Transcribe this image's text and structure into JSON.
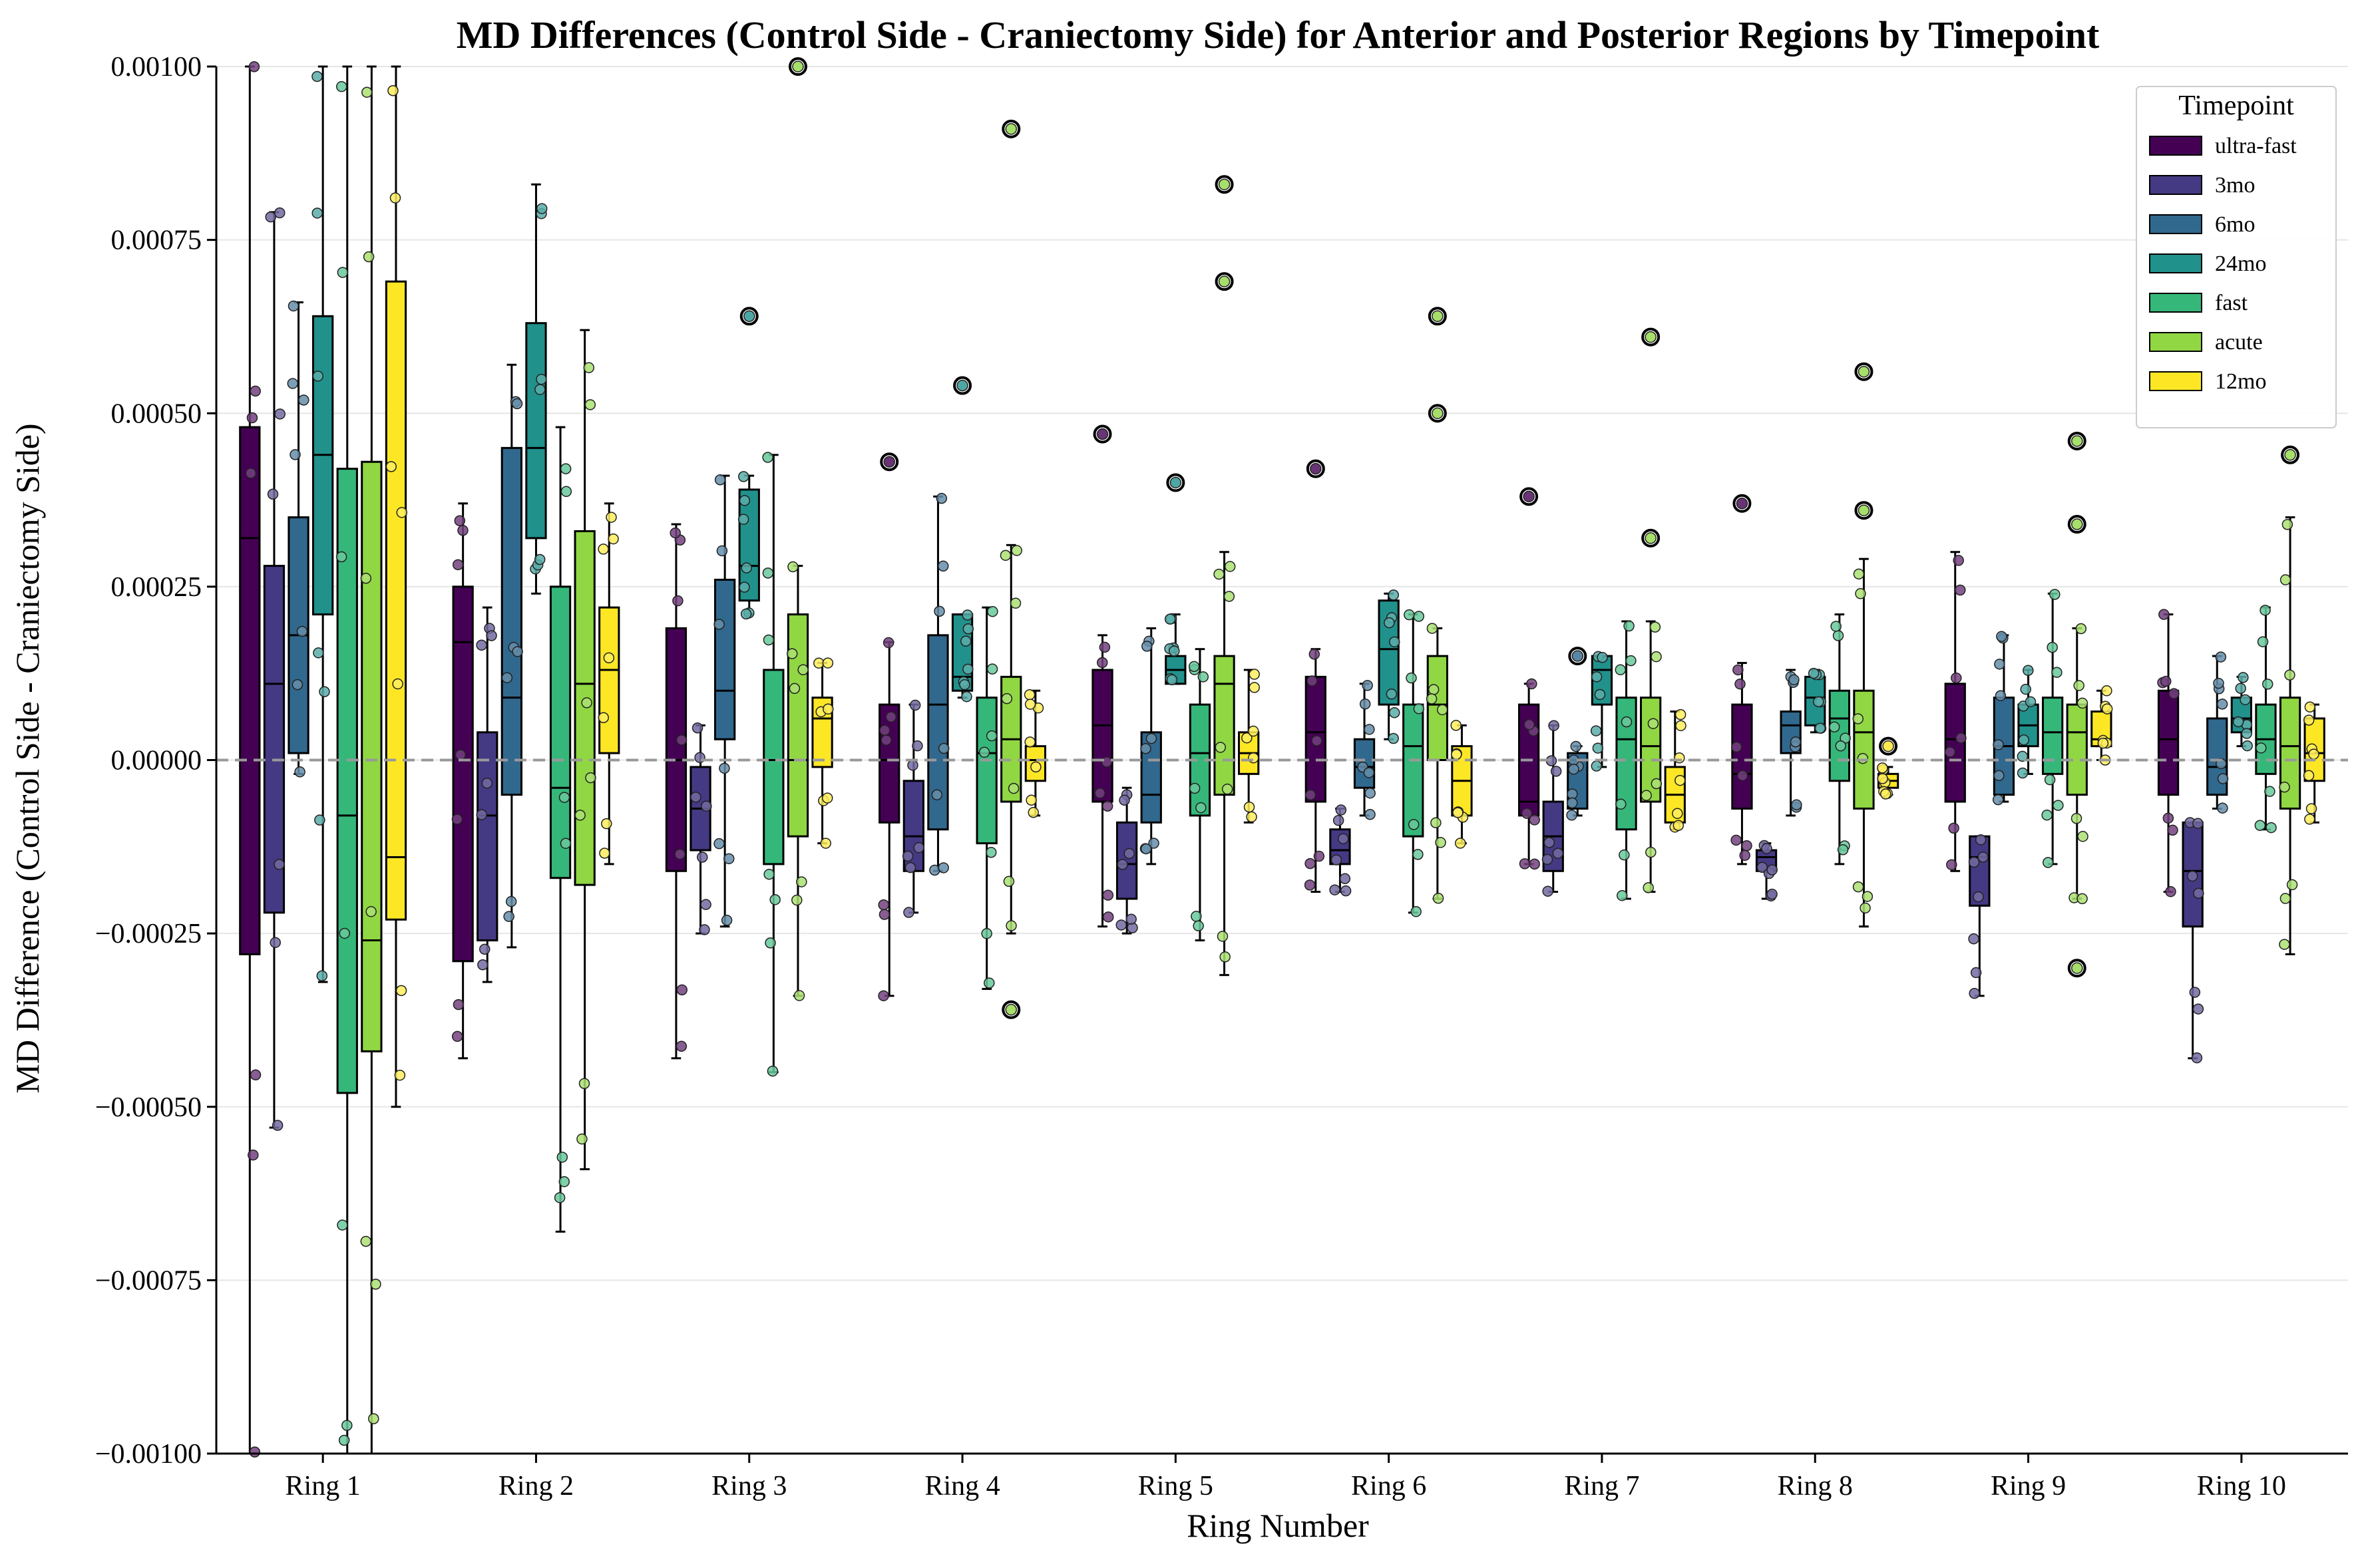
{
  "chart_data": {
    "type": "box",
    "title": "MD Differences (Control Side - Craniectomy Side) for Anterior and Posterior Regions by Timepoint",
    "xlabel": "Ring Number",
    "ylabel": "MD Difference (Control Side - Craniectomy Side)",
    "ylim": [
      -0.001,
      0.001
    ],
    "yticks": [
      -0.001,
      -0.00075,
      -0.0005,
      -0.00025,
      0.0,
      0.00025,
      0.0005,
      0.00075,
      0.001
    ],
    "ytick_labels": [
      "−0.00100",
      "−0.00075",
      "−0.00050",
      "−0.00025",
      "0.00000",
      "0.00025",
      "0.00050",
      "0.00075",
      "0.00100"
    ],
    "categories": [
      "Ring 1",
      "Ring 2",
      "Ring 3",
      "Ring 4",
      "Ring 5",
      "Ring 6",
      "Ring 7",
      "Ring 8",
      "Ring 9",
      "Ring 10"
    ],
    "reference_line": 0.0,
    "grid": "horizontal",
    "legend": {
      "title": "Timepoint",
      "position": "top-right"
    },
    "series": [
      {
        "name": "ultra-fast",
        "color": "#440154",
        "boxes": [
          {
            "q1": -0.00028,
            "median": 0.00032,
            "q3": 0.00048,
            "whislo": -0.001,
            "whishi": 0.001,
            "fliers": []
          },
          {
            "q1": -0.00029,
            "median": 0.00017,
            "q3": 0.00025,
            "whislo": -0.00043,
            "whishi": 0.00037,
            "fliers": []
          },
          {
            "q1": -0.00016,
            "median": 0.0,
            "q3": 0.00019,
            "whislo": -0.00043,
            "whishi": 0.00034,
            "fliers": []
          },
          {
            "q1": -9e-05,
            "median": 0.0,
            "q3": 8e-05,
            "whislo": -0.00034,
            "whishi": 0.00017,
            "fliers": [
              0.00043
            ]
          },
          {
            "q1": -6e-05,
            "median": 5e-05,
            "q3": 0.00013,
            "whislo": -0.00024,
            "whishi": 0.00018,
            "fliers": [
              0.00047
            ]
          },
          {
            "q1": -6e-05,
            "median": 4e-05,
            "q3": 0.00012,
            "whislo": -0.00019,
            "whishi": 0.00016,
            "fliers": [
              0.00042
            ]
          },
          {
            "q1": -8e-05,
            "median": -6e-05,
            "q3": 8e-05,
            "whislo": -0.00015,
            "whishi": 0.00011,
            "fliers": [
              0.00038
            ]
          },
          {
            "q1": -7e-05,
            "median": -2e-05,
            "q3": 8e-05,
            "whislo": -0.00015,
            "whishi": 0.00014,
            "fliers": [
              0.00037
            ]
          },
          {
            "q1": -6e-05,
            "median": 3e-05,
            "q3": 0.00011,
            "whislo": -0.00016,
            "whishi": 0.0003,
            "fliers": []
          },
          {
            "q1": -5e-05,
            "median": 3e-05,
            "q3": 0.0001,
            "whislo": -0.00019,
            "whishi": 0.00021,
            "fliers": []
          }
        ]
      },
      {
        "name": "3mo",
        "color": "#443983",
        "boxes": [
          {
            "q1": -0.00022,
            "median": 0.00011,
            "q3": 0.00028,
            "whislo": -0.00053,
            "whishi": 0.00079,
            "fliers": []
          },
          {
            "q1": -0.00026,
            "median": -8e-05,
            "q3": 4e-05,
            "whislo": -0.00032,
            "whishi": 0.00022,
            "fliers": []
          },
          {
            "q1": -0.00013,
            "median": -7e-05,
            "q3": -1e-05,
            "whislo": -0.00025,
            "whishi": 5e-05,
            "fliers": []
          },
          {
            "q1": -0.00016,
            "median": -0.00011,
            "q3": -3e-05,
            "whislo": -0.00022,
            "whishi": 8e-05,
            "fliers": []
          },
          {
            "q1": -0.0002,
            "median": -0.00015,
            "q3": -9e-05,
            "whislo": -0.00025,
            "whishi": -4e-05,
            "fliers": []
          },
          {
            "q1": -0.00015,
            "median": -0.00013,
            "q3": -0.0001,
            "whislo": -0.00019,
            "whishi": -7e-05,
            "fliers": []
          },
          {
            "q1": -0.00016,
            "median": -0.00011,
            "q3": -6e-05,
            "whislo": -0.00019,
            "whishi": 5e-05,
            "fliers": []
          },
          {
            "q1": -0.00016,
            "median": -0.00014,
            "q3": -0.00013,
            "whislo": -0.0002,
            "whishi": -0.00012,
            "fliers": []
          },
          {
            "q1": -0.00021,
            "median": -0.00014,
            "q3": -0.00011,
            "whislo": -0.00034,
            "whishi": -0.00011,
            "fliers": []
          },
          {
            "q1": -0.00024,
            "median": -0.00016,
            "q3": -9e-05,
            "whislo": -0.00043,
            "whishi": -9e-05,
            "fliers": []
          }
        ]
      },
      {
        "name": "6mo",
        "color": "#31688e",
        "boxes": [
          {
            "q1": 1e-05,
            "median": 0.00018,
            "q3": 0.00035,
            "whislo": -2e-05,
            "whishi": 0.00066,
            "fliers": []
          },
          {
            "q1": -5e-05,
            "median": 9e-05,
            "q3": 0.00045,
            "whislo": -0.00027,
            "whishi": 0.00057,
            "fliers": []
          },
          {
            "q1": 3e-05,
            "median": 0.0001,
            "q3": 0.00026,
            "whislo": -0.00024,
            "whishi": 0.00041,
            "fliers": []
          },
          {
            "q1": -0.0001,
            "median": 8e-05,
            "q3": 0.00018,
            "whislo": -0.00016,
            "whishi": 0.00038,
            "fliers": []
          },
          {
            "q1": -9e-05,
            "median": -5e-05,
            "q3": 4e-05,
            "whislo": -0.00015,
            "whishi": 0.00019,
            "fliers": []
          },
          {
            "q1": -4e-05,
            "median": -1e-05,
            "q3": 3e-05,
            "whislo": -8e-05,
            "whishi": 0.00011,
            "fliers": []
          },
          {
            "q1": -7e-05,
            "median": 0.0,
            "q3": 1e-05,
            "whislo": -8e-05,
            "whishi": 2e-05,
            "fliers": [
              0.00015
            ]
          },
          {
            "q1": 1e-05,
            "median": 5e-05,
            "q3": 7e-05,
            "whislo": -8e-05,
            "whishi": 0.00013,
            "fliers": []
          },
          {
            "q1": -5e-05,
            "median": 2e-05,
            "q3": 9e-05,
            "whislo": -6e-05,
            "whishi": 0.00018,
            "fliers": []
          },
          {
            "q1": -5e-05,
            "median": -1e-05,
            "q3": 6e-05,
            "whislo": -7e-05,
            "whishi": 0.00015,
            "fliers": []
          }
        ]
      },
      {
        "name": "24mo",
        "color": "#21918c",
        "boxes": [
          {
            "q1": 0.00021,
            "median": 0.00044,
            "q3": 0.00064,
            "whislo": -0.00032,
            "whishi": 0.001,
            "fliers": []
          },
          {
            "q1": 0.00032,
            "median": 0.00045,
            "q3": 0.00063,
            "whislo": 0.00024,
            "whishi": 0.00083,
            "fliers": []
          },
          {
            "q1": 0.00023,
            "median": 0.00028,
            "q3": 0.00039,
            "whislo": 0.00021,
            "whishi": 0.00041,
            "fliers": [
              0.00064
            ]
          },
          {
            "q1": 0.0001,
            "median": 0.00012,
            "q3": 0.00021,
            "whislo": 9e-05,
            "whishi": 0.00021,
            "fliers": [
              0.00054
            ]
          },
          {
            "q1": 0.00011,
            "median": 0.00013,
            "q3": 0.00015,
            "whislo": 0.00011,
            "whishi": 0.00021,
            "fliers": [
              0.0004
            ]
          },
          {
            "q1": 8e-05,
            "median": 0.00016,
            "q3": 0.00023,
            "whislo": 3e-05,
            "whishi": 0.00024,
            "fliers": []
          },
          {
            "q1": 8e-05,
            "median": 0.00013,
            "q3": 0.00015,
            "whislo": -1e-05,
            "whishi": 0.00015,
            "fliers": []
          },
          {
            "q1": 5e-05,
            "median": 9e-05,
            "q3": 0.00012,
            "whislo": 4e-05,
            "whishi": 0.00013,
            "fliers": []
          },
          {
            "q1": 2e-05,
            "median": 5e-05,
            "q3": 8e-05,
            "whislo": -2e-05,
            "whishi": 0.00013,
            "fliers": []
          },
          {
            "q1": 4e-05,
            "median": 6e-05,
            "q3": 9e-05,
            "whislo": 2e-05,
            "whishi": 0.00012,
            "fliers": []
          }
        ]
      },
      {
        "name": "fast",
        "color": "#35b779",
        "boxes": [
          {
            "q1": -0.00048,
            "median": -8e-05,
            "q3": 0.00042,
            "whislo": -0.001,
            "whishi": 0.001,
            "fliers": []
          },
          {
            "q1": -0.00017,
            "median": -4e-05,
            "q3": 0.00025,
            "whislo": -0.00068,
            "whishi": 0.00048,
            "fliers": []
          },
          {
            "q1": -0.00015,
            "median": 0.0,
            "q3": 0.00013,
            "whislo": -0.00045,
            "whishi": 0.00044,
            "fliers": []
          },
          {
            "q1": -0.00012,
            "median": 1e-05,
            "q3": 9e-05,
            "whislo": -0.00033,
            "whishi": 0.00022,
            "fliers": []
          },
          {
            "q1": -8e-05,
            "median": 1e-05,
            "q3": 8e-05,
            "whislo": -0.00026,
            "whishi": 0.00016,
            "fliers": []
          },
          {
            "q1": -0.00011,
            "median": 2e-05,
            "q3": 8e-05,
            "whislo": -0.00022,
            "whishi": 0.00021,
            "fliers": []
          },
          {
            "q1": -0.0001,
            "median": 3e-05,
            "q3": 9e-05,
            "whislo": -0.0002,
            "whishi": 0.0002,
            "fliers": []
          },
          {
            "q1": -3e-05,
            "median": 6e-05,
            "q3": 0.0001,
            "whislo": -0.00015,
            "whishi": 0.00021,
            "fliers": []
          },
          {
            "q1": -2e-05,
            "median": 4e-05,
            "q3": 9e-05,
            "whislo": -0.00015,
            "whishi": 0.00024,
            "fliers": []
          },
          {
            "q1": -2e-05,
            "median": 3e-05,
            "q3": 8e-05,
            "whislo": -0.0001,
            "whishi": 0.00022,
            "fliers": []
          }
        ]
      },
      {
        "name": "acute",
        "color": "#90d743",
        "boxes": [
          {
            "q1": -0.00042,
            "median": -0.00026,
            "q3": 0.00043,
            "whislo": -0.001,
            "whishi": 0.001,
            "fliers": []
          },
          {
            "q1": -0.00018,
            "median": 0.00011,
            "q3": 0.00033,
            "whislo": -0.00059,
            "whishi": 0.00062,
            "fliers": []
          },
          {
            "q1": -0.00011,
            "median": 0.0,
            "q3": 0.00021,
            "whislo": -0.00034,
            "whishi": 0.00028,
            "fliers": [
              0.001
            ]
          },
          {
            "q1": -6e-05,
            "median": 3e-05,
            "q3": 0.00012,
            "whislo": -0.00025,
            "whishi": 0.00031,
            "fliers": [
              0.00091,
              -0.00036
            ]
          },
          {
            "q1": -5e-05,
            "median": 0.00011,
            "q3": 0.00015,
            "whislo": -0.00031,
            "whishi": 0.0003,
            "fliers": [
              0.00083,
              0.00069
            ]
          },
          {
            "q1": 0.0,
            "median": 8e-05,
            "q3": 0.00015,
            "whislo": -0.0002,
            "whishi": 0.00019,
            "fliers": [
              0.00064,
              0.0005
            ]
          },
          {
            "q1": -6e-05,
            "median": 2e-05,
            "q3": 9e-05,
            "whislo": -0.00019,
            "whishi": 0.0002,
            "fliers": [
              0.00061,
              0.00032
            ]
          },
          {
            "q1": -7e-05,
            "median": 4e-05,
            "q3": 0.0001,
            "whislo": -0.00024,
            "whishi": 0.00029,
            "fliers": [
              0.00056,
              0.00036
            ]
          },
          {
            "q1": -5e-05,
            "median": 4e-05,
            "q3": 8e-05,
            "whislo": -0.0002,
            "whishi": 0.00019,
            "fliers": [
              0.00046,
              0.00034,
              -0.0003
            ]
          },
          {
            "q1": -7e-05,
            "median": 2e-05,
            "q3": 9e-05,
            "whislo": -0.00028,
            "whishi": 0.00035,
            "fliers": [
              0.00044
            ]
          }
        ]
      },
      {
        "name": "12mo",
        "color": "#fde725",
        "boxes": [
          {
            "q1": -0.00023,
            "median": -0.00014,
            "q3": 0.00069,
            "whislo": -0.0005,
            "whishi": 0.001,
            "fliers": []
          },
          {
            "q1": 1e-05,
            "median": 0.00013,
            "q3": 0.00022,
            "whislo": -0.00015,
            "whishi": 0.00037,
            "fliers": []
          },
          {
            "q1": -1e-05,
            "median": 6e-05,
            "q3": 9e-05,
            "whislo": -0.00012,
            "whishi": 0.00014,
            "fliers": []
          },
          {
            "q1": -3e-05,
            "median": 0.0,
            "q3": 2e-05,
            "whislo": -8e-05,
            "whishi": 0.0001,
            "fliers": []
          },
          {
            "q1": -2e-05,
            "median": 1e-05,
            "q3": 4e-05,
            "whislo": -9e-05,
            "whishi": 0.00013,
            "fliers": []
          },
          {
            "q1": -8e-05,
            "median": -3e-05,
            "q3": 2e-05,
            "whislo": -0.00012,
            "whishi": 5e-05,
            "fliers": []
          },
          {
            "q1": -9e-05,
            "median": -5e-05,
            "q3": -1e-05,
            "whislo": -0.0001,
            "whishi": 7e-05,
            "fliers": []
          },
          {
            "q1": -4e-05,
            "median": -3e-05,
            "q3": -2e-05,
            "whislo": -5e-05,
            "whishi": -1e-05,
            "fliers": [
              2e-05
            ]
          },
          {
            "q1": 2e-05,
            "median": 3e-05,
            "q3": 7e-05,
            "whislo": 0.0,
            "whishi": 0.0001,
            "fliers": []
          },
          {
            "q1": -3e-05,
            "median": 1e-05,
            "q3": 6e-05,
            "whislo": -9e-05,
            "whishi": 8e-05,
            "fliers": []
          }
        ]
      }
    ]
  }
}
